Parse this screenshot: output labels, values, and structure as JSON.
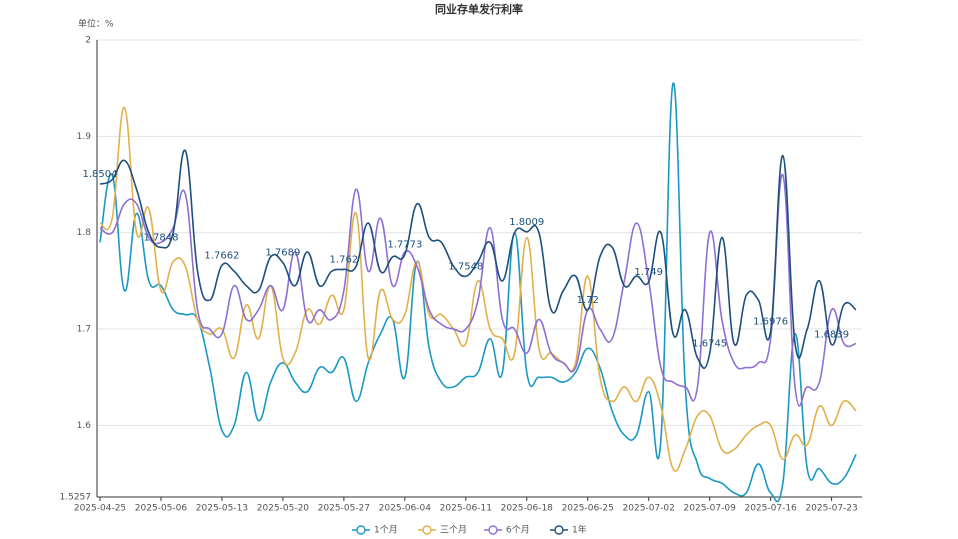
{
  "chart_data": {
    "type": "line",
    "title": "同业存单发行利率",
    "unit_label": "单位：%",
    "categories": [
      "2025-04-25",
      null,
      null,
      null,
      null,
      "2025-05-06",
      null,
      null,
      null,
      null,
      "2025-05-13",
      null,
      null,
      null,
      null,
      "2025-05-20",
      null,
      null,
      null,
      null,
      "2025-05-27",
      null,
      null,
      null,
      null,
      "2025-06-04",
      null,
      null,
      null,
      null,
      "2025-06-11",
      null,
      null,
      null,
      null,
      "2025-06-18",
      null,
      null,
      null,
      null,
      "2025-06-25",
      null,
      null,
      null,
      null,
      "2025-07-02",
      null,
      null,
      null,
      null,
      "2025-07-09",
      null,
      null,
      null,
      null,
      "2025-07-16",
      null,
      null,
      null,
      null,
      "2025-07-23",
      null,
      null
    ],
    "ylim": [
      1.5257,
      2
    ],
    "yticks": [
      1.5257,
      1.6,
      1.7,
      1.8,
      1.9,
      2
    ],
    "grid": true,
    "legend": "bottom",
    "series": [
      {
        "name": "1个月",
        "color": "#1a98c4",
        "values": [
          1.79,
          1.86,
          1.74,
          1.82,
          1.75,
          1.745,
          1.72,
          1.715,
          1.71,
          1.66,
          1.595,
          1.6,
          1.655,
          1.605,
          1.645,
          1.665,
          1.645,
          1.635,
          1.66,
          1.655,
          1.67,
          1.625,
          1.665,
          1.695,
          1.71,
          1.65,
          1.77,
          1.68,
          1.645,
          1.64,
          1.65,
          1.655,
          1.69,
          1.655,
          1.8,
          1.655,
          1.65,
          1.65,
          1.645,
          1.655,
          1.68,
          1.66,
          1.615,
          1.59,
          1.59,
          1.635,
          1.585,
          1.955,
          1.64,
          1.56,
          1.545,
          1.54,
          1.53,
          1.53,
          1.56,
          1.53,
          1.54,
          1.695,
          1.555,
          1.555,
          1.54,
          1.545,
          1.57
        ]
      },
      {
        "name": "三个月",
        "color": "#e2b04a",
        "values": [
          1.81,
          1.815,
          1.93,
          1.8,
          1.825,
          1.74,
          1.77,
          1.765,
          1.71,
          1.695,
          1.7,
          1.67,
          1.725,
          1.69,
          1.745,
          1.67,
          1.675,
          1.72,
          1.705,
          1.735,
          1.72,
          1.82,
          1.67,
          1.74,
          1.71,
          1.715,
          1.77,
          1.715,
          1.715,
          1.7,
          1.685,
          1.75,
          1.7,
          1.69,
          1.675,
          1.795,
          1.68,
          1.675,
          1.665,
          1.665,
          1.755,
          1.65,
          1.625,
          1.64,
          1.625,
          1.65,
          1.62,
          1.555,
          1.575,
          1.61,
          1.61,
          1.575,
          1.575,
          1.59,
          1.6,
          1.6,
          1.565,
          1.59,
          1.58,
          1.62,
          1.6,
          1.625,
          1.615
        ]
      },
      {
        "name": "6个月",
        "color": "#8e6fd6",
        "values": [
          1.805,
          1.8,
          1.83,
          1.83,
          1.795,
          1.79,
          1.805,
          1.84,
          1.72,
          1.7,
          1.695,
          1.745,
          1.71,
          1.72,
          1.745,
          1.72,
          1.78,
          1.71,
          1.72,
          1.71,
          1.74,
          1.845,
          1.76,
          1.815,
          1.745,
          1.78,
          1.765,
          1.72,
          1.705,
          1.7,
          1.7,
          1.73,
          1.805,
          1.71,
          1.7,
          1.675,
          1.71,
          1.675,
          1.665,
          1.66,
          1.72,
          1.7,
          1.69,
          1.75,
          1.81,
          1.75,
          1.66,
          1.645,
          1.64,
          1.64,
          1.8,
          1.71,
          1.665,
          1.66,
          1.665,
          1.69,
          1.86,
          1.64,
          1.64,
          1.645,
          1.72,
          1.685,
          1.685
        ]
      },
      {
        "name": "1年",
        "color": "#1d4f7c",
        "values": [
          1.8504,
          1.855,
          1.875,
          1.845,
          1.8,
          1.7848,
          1.8,
          1.885,
          1.76,
          1.73,
          1.7662,
          1.76,
          1.745,
          1.74,
          1.775,
          1.7689,
          1.745,
          1.78,
          1.745,
          1.76,
          1.762,
          1.765,
          1.81,
          1.76,
          1.775,
          1.7773,
          1.83,
          1.795,
          1.79,
          1.765,
          1.7548,
          1.77,
          1.79,
          1.75,
          1.8,
          1.8009,
          1.8,
          1.72,
          1.74,
          1.755,
          1.72,
          1.775,
          1.785,
          1.745,
          1.755,
          1.749,
          1.8,
          1.695,
          1.72,
          1.67,
          1.6745,
          1.795,
          1.685,
          1.735,
          1.73,
          1.6976,
          1.88,
          1.685,
          1.7,
          1.75,
          1.6839,
          1.725,
          1.72
        ],
        "value_labels": [
          "1.8504",
          null,
          null,
          null,
          null,
          "1.7848",
          null,
          null,
          null,
          null,
          "1.7662",
          null,
          null,
          null,
          null,
          "1.7689",
          null,
          null,
          null,
          null,
          "1.762",
          null,
          null,
          null,
          null,
          "1.7773",
          null,
          null,
          null,
          null,
          "1.7548",
          null,
          null,
          null,
          null,
          "1.8009",
          null,
          null,
          null,
          null,
          "1.72",
          null,
          null,
          null,
          null,
          "1.749",
          null,
          null,
          null,
          null,
          "1.6745",
          null,
          null,
          null,
          null,
          "1.6976",
          null,
          null,
          null,
          null,
          "1.6839",
          null,
          null
        ]
      }
    ]
  }
}
